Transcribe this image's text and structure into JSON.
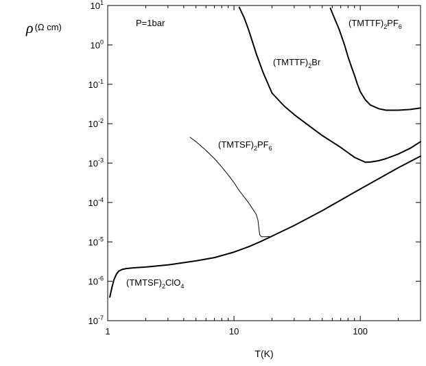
{
  "chart_data": {
    "type": "line",
    "title": "",
    "xlabel": "T(K)",
    "ylabel": {
      "symbol": "ρ",
      "unit": "(Ω cm)"
    },
    "x_scale": "log",
    "y_scale": "log",
    "xlim": [
      1,
      300
    ],
    "ylim": [
      1e-07,
      10
    ],
    "grid": false,
    "legend": "none",
    "x_ticks": [
      {
        "value": 1,
        "label": "1"
      },
      {
        "value": 10,
        "label": "10"
      },
      {
        "value": 100,
        "label": "100"
      }
    ],
    "y_ticks": [
      {
        "value": 10,
        "base": "10",
        "exp": "1"
      },
      {
        "value": 1,
        "base": "10",
        "exp": "0"
      },
      {
        "value": 0.1,
        "base": "10",
        "exp": "-1"
      },
      {
        "value": 0.01,
        "base": "10",
        "exp": "-2"
      },
      {
        "value": 0.001,
        "base": "10",
        "exp": "-3"
      },
      {
        "value": 0.0001,
        "base": "10",
        "exp": "-4"
      },
      {
        "value": 1e-05,
        "base": "10",
        "exp": "-5"
      },
      {
        "value": 1e-06,
        "base": "10",
        "exp": "-6"
      },
      {
        "value": 1e-07,
        "base": "10",
        "exp": "-7"
      }
    ],
    "annotations": [
      {
        "text": "P=1bar"
      }
    ],
    "series": [
      {
        "name": "(TMTTF)2PF6",
        "label_parts": [
          {
            "t": "(TMTTF)"
          },
          {
            "t": "2",
            "sub": true
          },
          {
            "t": "PF"
          },
          {
            "t": "6",
            "sub": true
          }
        ],
        "color": "#000000",
        "weight": "heavy",
        "x": [
          58,
          62,
          68,
          75,
          80,
          85,
          90,
          95,
          100,
          110,
          120,
          140,
          160,
          200,
          250,
          300
        ],
        "y": [
          8.5,
          5,
          2.5,
          1.0,
          0.5,
          0.28,
          0.17,
          0.1,
          0.065,
          0.04,
          0.03,
          0.024,
          0.022,
          0.022,
          0.023,
          0.025
        ]
      },
      {
        "name": "(TMTTF)2Br",
        "label_parts": [
          {
            "t": "(TMTTF)"
          },
          {
            "t": "2",
            "sub": true
          },
          {
            "t": "Br"
          }
        ],
        "color": "#000000",
        "weight": "heavy",
        "x": [
          11,
          12,
          13,
          14,
          15,
          17,
          20,
          25,
          30,
          40,
          50,
          70,
          90,
          100,
          110,
          120,
          140,
          160,
          200,
          250,
          300
        ],
        "y": [
          9,
          5,
          2.5,
          1.2,
          0.6,
          0.2,
          0.06,
          0.028,
          0.017,
          0.0085,
          0.005,
          0.0025,
          0.0014,
          0.0012,
          0.00105,
          0.00106,
          0.00115,
          0.0013,
          0.0017,
          0.0024,
          0.0035
        ]
      },
      {
        "name": "(TMTSF)2PF6",
        "label_parts": [
          {
            "t": "(TMTSF)"
          },
          {
            "t": "2",
            "sub": true
          },
          {
            "t": "PF"
          },
          {
            "t": "6",
            "sub": true
          }
        ],
        "color": "#000000",
        "weight": "light",
        "x": [
          4.5,
          5,
          6,
          7,
          8,
          9,
          10,
          11,
          12,
          13,
          14,
          15,
          15.5,
          15.8,
          16,
          16.5,
          17,
          18,
          19
        ],
        "y": [
          0.0045,
          0.0035,
          0.0021,
          0.0013,
          0.0008,
          0.0005,
          0.00032,
          0.0002,
          0.00014,
          0.0001,
          7e-05,
          5e-05,
          3.5e-05,
          2e-05,
          1.5e-05,
          1.35e-05,
          1.35e-05,
          1.35e-05,
          1.38e-05
        ]
      },
      {
        "name": "(TMTSF)2ClO4",
        "label_parts": [
          {
            "t": "(TMTSF)"
          },
          {
            "t": "2",
            "sub": true
          },
          {
            "t": "ClO"
          },
          {
            "t": "4",
            "sub": true
          }
        ],
        "color": "#000000",
        "weight": "heavy",
        "x": [
          1.04,
          1.08,
          1.12,
          1.17,
          1.22,
          1.3,
          1.4,
          1.6,
          2,
          3,
          5,
          7,
          10,
          13,
          16,
          20,
          30,
          50,
          100,
          200,
          300
        ],
        "y": [
          4e-07,
          7e-07,
          1.1e-06,
          1.5e-06,
          1.8e-06,
          2e-06,
          2.1e-06,
          2.2e-06,
          2.3e-06,
          2.6e-06,
          3.3e-06,
          4e-06,
          5.5e-06,
          7.5e-06,
          1e-05,
          1.4e-05,
          2.6e-05,
          6.2e-05,
          0.00022,
          0.00076,
          0.0015
        ]
      }
    ]
  }
}
